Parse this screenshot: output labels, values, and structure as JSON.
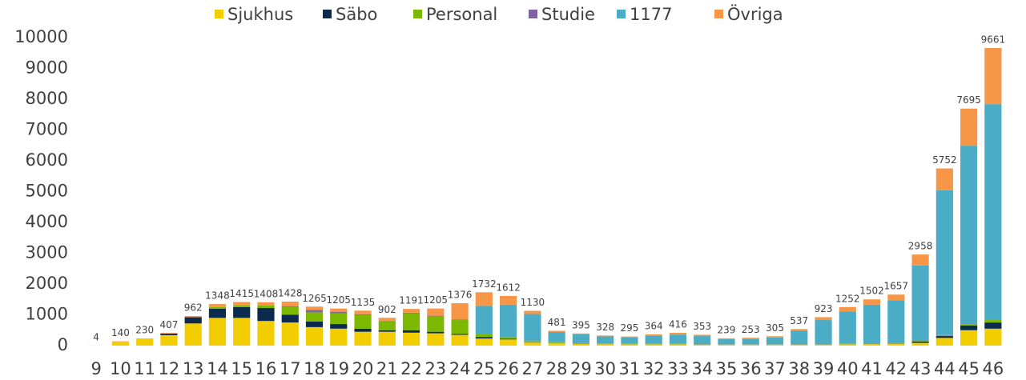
{
  "chart_data": {
    "type": "stacked-bar",
    "categories": [
      "9",
      "10",
      "11",
      "12",
      "13",
      "14",
      "15",
      "16",
      "17",
      "18",
      "19",
      "20",
      "21",
      "22",
      "23",
      "24",
      "25",
      "26",
      "27",
      "28",
      "29",
      "30",
      "31",
      "32",
      "33",
      "34",
      "35",
      "36",
      "37",
      "38",
      "39",
      "40",
      "41",
      "42",
      "43",
      "44",
      "45",
      "46"
    ],
    "series": [
      {
        "name": "Sjukhus",
        "color": "#f2ce00",
        "values": [
          4,
          130,
          220,
          340,
          720,
          900,
          900,
          800,
          750,
          600,
          550,
          450,
          450,
          420,
          400,
          350,
          230,
          200,
          100,
          80,
          60,
          50,
          40,
          40,
          40,
          30,
          30,
          30,
          30,
          30,
          30,
          40,
          50,
          60,
          90,
          250,
          500,
          550
        ]
      },
      {
        "name": "Säbo",
        "color": "#0b2a4d",
        "values": [
          0,
          0,
          0,
          50,
          200,
          300,
          350,
          420,
          250,
          180,
          150,
          100,
          50,
          80,
          50,
          30,
          50,
          20,
          10,
          5,
          5,
          5,
          5,
          5,
          5,
          5,
          5,
          5,
          5,
          5,
          5,
          5,
          10,
          10,
          40,
          60,
          150,
          200
        ]
      },
      {
        "name": "Personal",
        "color": "#7db800",
        "values": [
          0,
          0,
          0,
          0,
          0,
          50,
          50,
          80,
          250,
          300,
          350,
          450,
          300,
          550,
          500,
          450,
          100,
          50,
          30,
          20,
          15,
          10,
          10,
          10,
          10,
          10,
          5,
          5,
          5,
          10,
          10,
          10,
          15,
          15,
          20,
          30,
          50,
          80
        ]
      },
      {
        "name": "Studie",
        "color": "#8064a2",
        "values": [
          0,
          0,
          0,
          0,
          0,
          0,
          0,
          0,
          30,
          80,
          50,
          20,
          10,
          20,
          20,
          20,
          10,
          10,
          5,
          5,
          5,
          5,
          5,
          5,
          5,
          5,
          5,
          5,
          5,
          5,
          5,
          5,
          5,
          5,
          5,
          5,
          10,
          10
        ]
      },
      {
        "name": "1177",
        "color": "#4bacc6",
        "values": [
          0,
          0,
          0,
          0,
          0,
          0,
          0,
          0,
          0,
          0,
          0,
          0,
          0,
          0,
          0,
          0,
          900,
          1050,
          880,
          330,
          280,
          230,
          210,
          270,
          300,
          260,
          170,
          180,
          220,
          440,
          780,
          1050,
          1250,
          1380,
          2450,
          4700,
          5780,
          7000
        ]
      },
      {
        "name": "Övriga",
        "color": "#f79646",
        "values": [
          0,
          10,
          10,
          17,
          42,
          98,
          115,
          108,
          148,
          105,
          105,
          115,
          92,
          121,
          235,
          526,
          442,
          282,
          105,
          41,
          30,
          28,
          25,
          34,
          56,
          43,
          24,
          28,
          40,
          47,
          93,
          142,
          172,
          187,
          353,
          707,
          1205,
          1821
        ]
      }
    ],
    "totals": [
      4,
      140,
      230,
      407,
      962,
      1348,
      1415,
      1408,
      1428,
      1265,
      1205,
      1135,
      902,
      1191,
      1205,
      1376,
      1732,
      1612,
      1130,
      481,
      395,
      328,
      295,
      364,
      416,
      353,
      239,
      253,
      305,
      537,
      923,
      1252,
      1502,
      1657,
      2958,
      5752,
      7695,
      9661
    ],
    "ylim": [
      0,
      10000
    ],
    "yticks": [
      0,
      1000,
      2000,
      3000,
      4000,
      5000,
      6000,
      7000,
      8000,
      9000,
      10000
    ],
    "grid": false
  }
}
